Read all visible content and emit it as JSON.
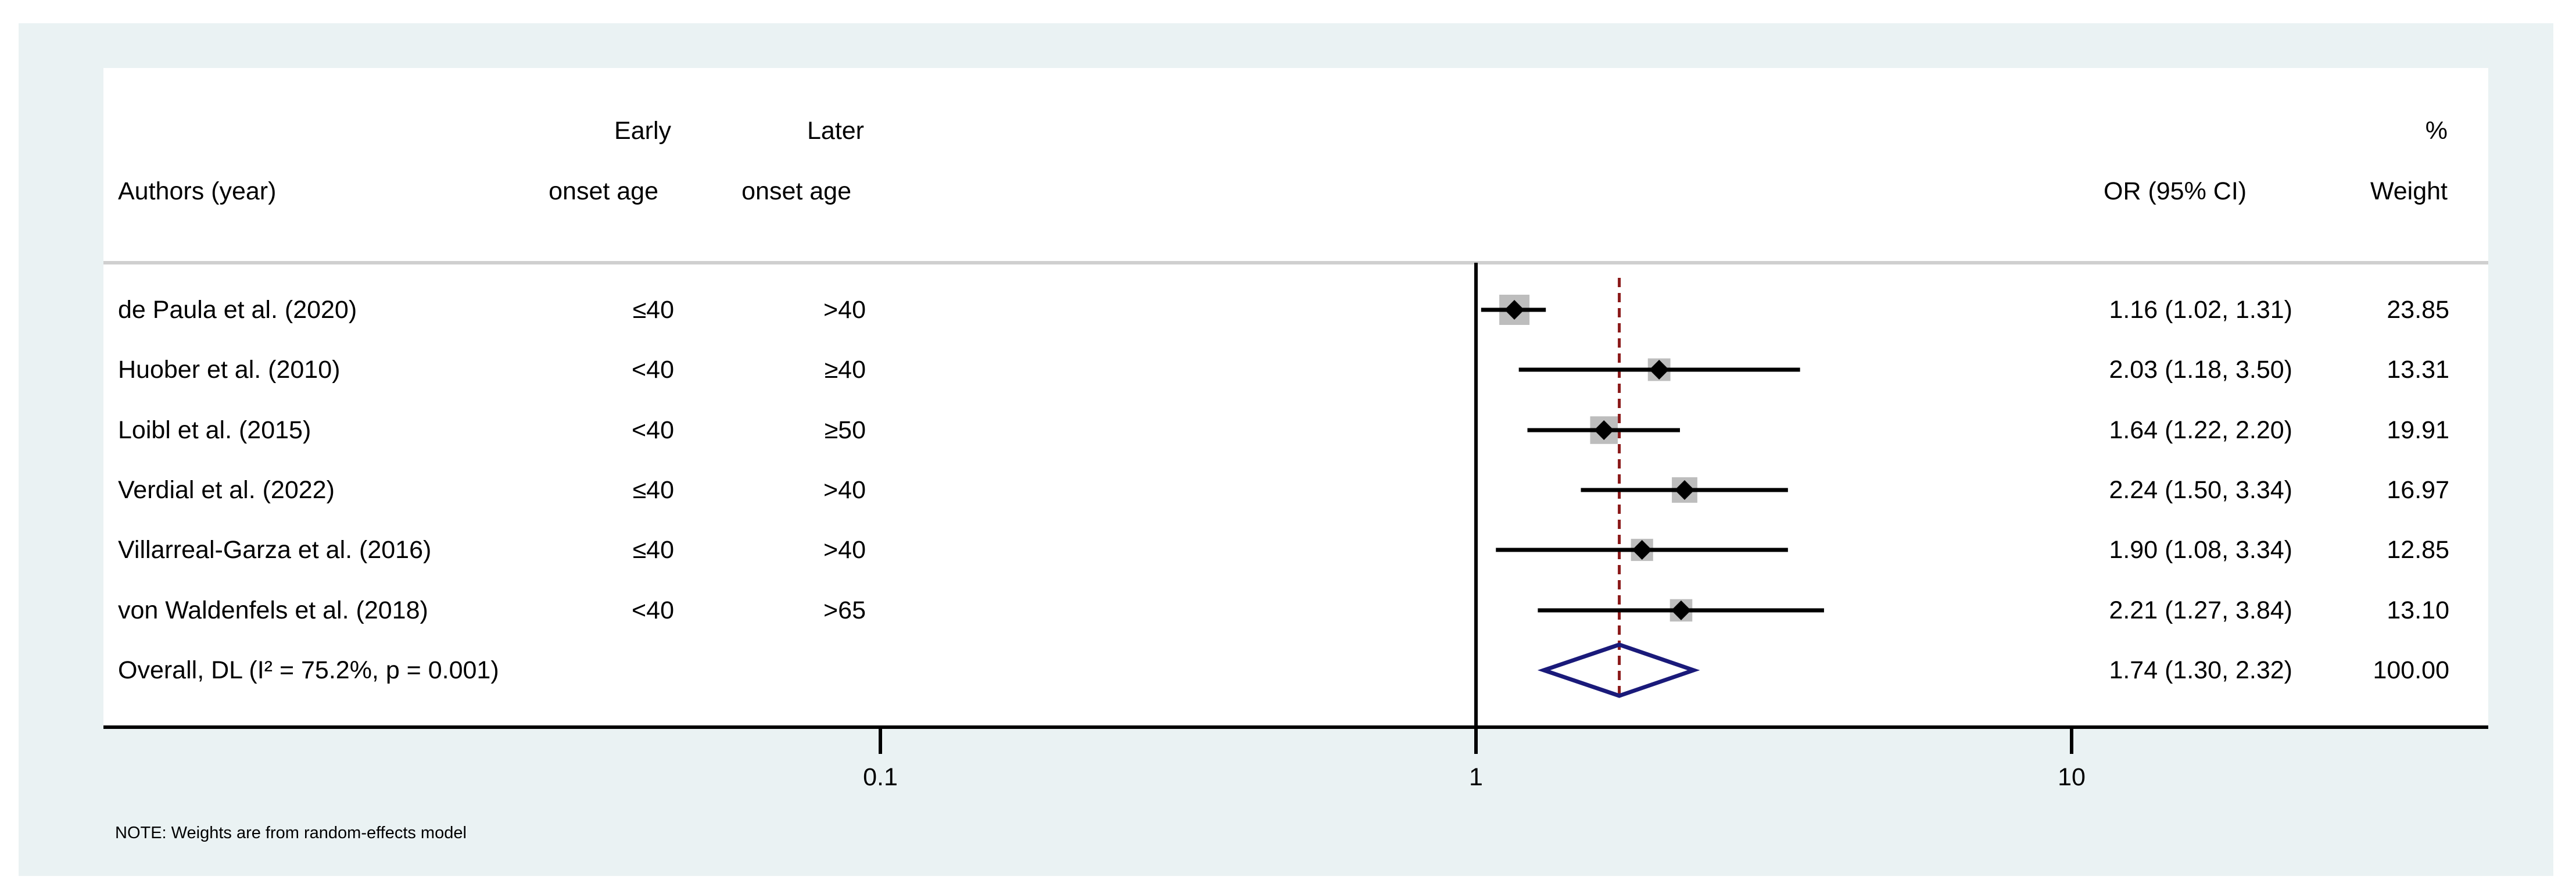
{
  "headers": {
    "early_line1": "Early",
    "early_line2": "onset age",
    "later_line1": "Later",
    "later_line2": "onset age",
    "authors": "Authors (year)",
    "or_ci": "OR (95% CI)",
    "weight_line1": "%",
    "weight_line2": "Weight"
  },
  "rows": [
    {
      "author": "de Paula et al. (2020)",
      "early": "≤40",
      "later": ">40",
      "or_text": "1.16 (1.02, 1.31)",
      "weight": "23.85"
    },
    {
      "author": "Huober et al. (2010)",
      "early": "<40",
      "later": "≥40",
      "or_text": "2.03 (1.18, 3.50)",
      "weight": "13.31"
    },
    {
      "author": "Loibl et al. (2015)",
      "early": "<40",
      "later": "≥50",
      "or_text": "1.64 (1.22, 2.20)",
      "weight": "19.91"
    },
    {
      "author": "Verdial et al. (2022)",
      "early": "≤40",
      "later": ">40",
      "or_text": "2.24 (1.50, 3.34)",
      "weight": "16.97"
    },
    {
      "author": "Villarreal-Garza et al. (2016)",
      "early": "≤40",
      "later": ">40",
      "or_text": "1.90 (1.08, 3.34)",
      "weight": "12.85"
    },
    {
      "author": "von Waldenfels et al. (2018)",
      "early": "<40",
      "later": ">65",
      "or_text": "2.21 (1.27, 3.84)",
      "weight": "13.10"
    }
  ],
  "overall": {
    "label": "Overall, DL (I² = 75.2%, p = 0.001)",
    "or_text": "1.74 (1.30, 2.32)",
    "weight": "100.00"
  },
  "axis_ticks": [
    {
      "value": 0.1,
      "label": "0.1"
    },
    {
      "value": 1,
      "label": "1"
    },
    {
      "value": 10,
      "label": "10"
    }
  ],
  "note": "NOTE: Weights are from random-effects model",
  "colors": {
    "background_frame": "#eaf2f3",
    "panel": "#ffffff",
    "weight_box": "#bdbdbd",
    "point": "#000000",
    "ci_line": "#000000",
    "overall_diamond": "#1a1a7a",
    "reference_line": "#8b1a1a",
    "divider": "#cfcfcf"
  },
  "chart_data": {
    "type": "forest",
    "x_scale": "log",
    "xlim": [
      0.1,
      10
    ],
    "null_line": 1,
    "pooled_line": 1.74,
    "studies": [
      {
        "name": "de Paula et al. (2020)",
        "or": 1.16,
        "lo": 1.02,
        "hi": 1.31,
        "weight": 23.85
      },
      {
        "name": "Huober et al. (2010)",
        "or": 2.03,
        "lo": 1.18,
        "hi": 3.5,
        "weight": 13.31
      },
      {
        "name": "Loibl et al. (2015)",
        "or": 1.64,
        "lo": 1.22,
        "hi": 2.2,
        "weight": 19.91
      },
      {
        "name": "Verdial et al. (2022)",
        "or": 2.24,
        "lo": 1.5,
        "hi": 3.34,
        "weight": 16.97
      },
      {
        "name": "Villarreal-Garza et al. (2016)",
        "or": 1.9,
        "lo": 1.08,
        "hi": 3.34,
        "weight": 12.85
      },
      {
        "name": "von Waldenfels et al. (2018)",
        "or": 2.21,
        "lo": 1.27,
        "hi": 3.84,
        "weight": 13.1
      }
    ],
    "overall": {
      "or": 1.74,
      "lo": 1.3,
      "hi": 2.32,
      "weight": 100.0
    }
  }
}
